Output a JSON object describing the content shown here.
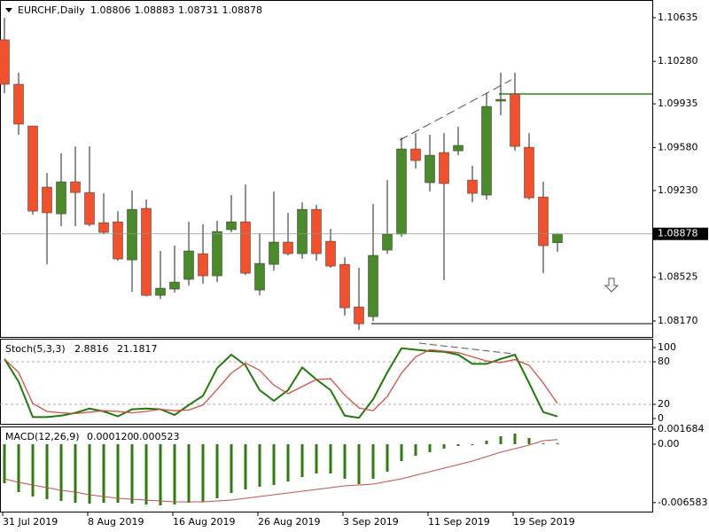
{
  "chart_data": [
    {
      "type": "candlestick",
      "title": "EURCHF,Daily",
      "categories": [
        "31 Jul 2019",
        null,
        null,
        null,
        null,
        null,
        "8 Aug 2019",
        null,
        null,
        null,
        null,
        null,
        "16 Aug 2019",
        null,
        null,
        null,
        null,
        null,
        "26 Aug 2019",
        null,
        null,
        null,
        null,
        null,
        "3 Sep 2019",
        null,
        null,
        null,
        null,
        null,
        "11 Sep 2019",
        null,
        null,
        null,
        null,
        null,
        "19 Sep 2019",
        null,
        null,
        null
      ],
      "open": [
        1.10455,
        1.10094,
        1.09755,
        1.09258,
        1.09041,
        1.09301,
        1.09214,
        1.08969,
        1.08976,
        1.08666,
        1.09085,
        1.08378,
        1.08429,
        1.08508,
        1.08717,
        1.08537,
        1.08912,
        1.08976,
        1.08421,
        1.0863,
        1.08811,
        1.08717,
        1.09077,
        1.08818,
        1.0863,
        1.08284,
        1.08205,
        1.08746,
        1.08876,
        1.09568,
        1.09294,
        1.09539,
        1.09553,
        1.09315,
        1.09193,
        1.09957,
        1.10015,
        1.09582,
        1.09178,
        1.08806
      ],
      "high": [
        1.10635,
        1.10188,
        1.09755,
        1.09373,
        1.09532,
        1.09589,
        1.09589,
        1.09207,
        1.09063,
        1.09229,
        1.09157,
        1.08739,
        1.08782,
        1.08976,
        1.08955,
        1.08984,
        1.09193,
        1.09279,
        1.08883,
        1.09222,
        1.09049,
        1.09135,
        1.09113,
        1.08919,
        1.08688,
        1.08602,
        1.09121,
        1.09315,
        1.09661,
        1.09697,
        1.09683,
        1.09697,
        1.09748,
        1.09431,
        1.10022,
        1.10188,
        1.10188,
        1.09697,
        1.09301,
        1.08883
      ],
      "low": [
        1.10022,
        1.09683,
        1.09034,
        1.0863,
        1.0894,
        1.0894,
        1.0894,
        1.08876,
        1.08659,
        1.08407,
        1.08371,
        1.08349,
        1.084,
        1.08457,
        1.08472,
        1.08486,
        1.0889,
        1.08544,
        1.08378,
        1.0858,
        1.08703,
        1.08674,
        1.08659,
        1.08602,
        1.08212,
        1.08097,
        1.08169,
        1.08717,
        1.08854,
        1.09409,
        1.09222,
        1.08501,
        1.09517,
        1.09135,
        1.09157,
        1.09842,
        1.09553,
        1.09157,
        1.08558,
        1.08731
      ],
      "close": [
        1.10094,
        1.0977,
        1.09063,
        1.09049,
        1.09301,
        1.09214,
        1.08955,
        1.0889,
        1.08674,
        1.09077,
        1.08378,
        1.08436,
        1.08486,
        1.08739,
        1.08537,
        1.08897,
        1.08976,
        1.08558,
        1.08638,
        1.08811,
        1.08717,
        1.09077,
        1.08717,
        1.08616,
        1.08277,
        1.08147,
        1.08703,
        1.08876,
        1.09568,
        1.09474,
        1.09517,
        1.09287,
        1.09597,
        1.09207,
        1.09914,
        1.09971,
        1.09589,
        1.09171,
        1.08782,
        1.08878
      ],
      "up_color": "#4a8a2a",
      "down_color": "#f0522d",
      "ylim": [
        1.0804,
        1.10779
      ],
      "yticks": [
        {
          "value": 1.10635,
          "label": "1.10635"
        },
        {
          "value": 1.1028,
          "label": "1.10280"
        },
        {
          "value": 1.09935,
          "label": "1.09935"
        },
        {
          "value": 1.0958,
          "label": "1.09580"
        },
        {
          "value": 1.0923,
          "label": "1.09230"
        },
        {
          "value": 1.08525,
          "label": "1.08525"
        },
        {
          "value": 1.0817,
          "label": "1.08170"
        }
      ]
    },
    {
      "type": "line",
      "title": "Stoch(5,3,3)",
      "series": [
        {
          "name": "Main",
          "color": "#1f7a0a",
          "values": [
            84,
            52,
            2,
            2,
            4,
            8,
            14,
            10,
            3,
            13,
            14,
            13,
            5,
            19,
            32,
            71,
            90,
            75,
            40,
            25,
            40,
            72,
            55,
            40,
            4,
            1,
            27,
            65,
            99,
            97,
            95,
            94,
            90,
            77,
            77,
            84,
            90,
            50,
            9,
            2.8816
          ]
        },
        {
          "name": "Signal",
          "color": "#d0504a",
          "values": [
            84,
            65,
            21,
            10,
            8,
            7,
            9,
            11,
            10,
            8,
            10,
            13,
            11,
            12,
            19,
            41,
            64,
            78,
            68,
            47,
            35,
            45,
            55,
            56,
            33,
            15,
            11,
            31,
            64,
            87,
            97,
            95,
            93,
            87,
            81,
            79,
            83,
            75,
            50,
            21.1817
          ]
        }
      ],
      "ylim": [
        -7.5,
        111.25
      ],
      "yticks": [
        100,
        80,
        20,
        0
      ],
      "grid_levels": [
        80,
        20
      ]
    },
    {
      "type": "macd",
      "title": "MACD(12,26,9)",
      "series": [
        {
          "name": "MACD",
          "color": "#2e7d12",
          "last_value_label": "0.000120",
          "values": [
            -0.0044,
            -0.0054,
            -0.0059,
            -0.0062,
            -0.0064,
            -0.0066,
            -0.0067,
            -0.0066,
            -0.0066,
            -0.0067,
            -0.0068,
            -0.0069,
            -0.0068,
            -0.0066,
            -0.0065,
            -0.0061,
            -0.0055,
            -0.0051,
            -0.0048,
            -0.0046,
            -0.0042,
            -0.0037,
            -0.0033,
            -0.0033,
            -0.0039,
            -0.0045,
            -0.0039,
            -0.0031,
            -0.0019,
            -0.0013,
            -0.0009,
            -0.0005,
            -0.0002,
            -0.0001,
            0.0004,
            0.0009,
            0.0012,
            0.0007,
            0.0001,
            0.00012
          ]
        },
        {
          "name": "Signal",
          "color": "#c0504d",
          "last_value_label": "0.000523",
          "values": [
            -0.0039,
            -0.0043,
            -0.0046,
            -0.0049,
            -0.0052,
            -0.0054,
            -0.0057,
            -0.0059,
            -0.0061,
            -0.0062,
            -0.0063,
            -0.0064,
            -0.0065,
            -0.0065,
            -0.0065,
            -0.0064,
            -0.0063,
            -0.0061,
            -0.0059,
            -0.0057,
            -0.0055,
            -0.0053,
            -0.0051,
            -0.0049,
            -0.0047,
            -0.0046,
            -0.0045,
            -0.0042,
            -0.0039,
            -0.0035,
            -0.0031,
            -0.0027,
            -0.0023,
            -0.0019,
            -0.0014,
            -0.0009,
            -0.0005,
            -0.0001,
            0.0004,
            0.000523
          ]
        }
      ],
      "ylim": [
        -0.0077,
        0.0018
      ],
      "yticks": [
        0.001684,
        {
          "value": 0,
          "label": "0.00"
        },
        -0.006583
      ]
    }
  ]
}
